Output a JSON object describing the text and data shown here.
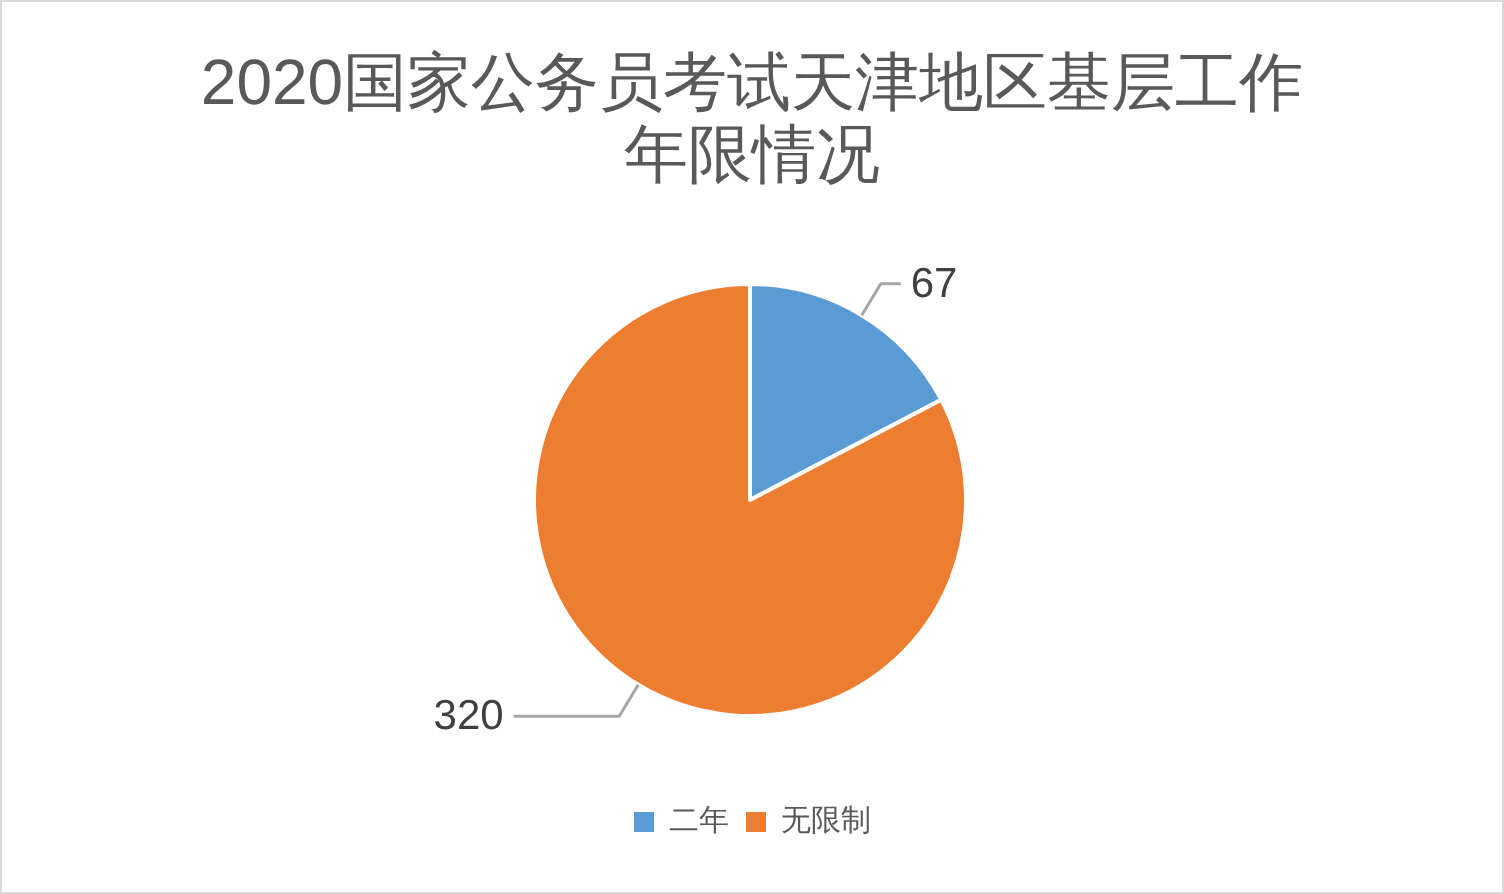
{
  "chart_data": {
    "type": "pie",
    "title": "2020国家公务员考试天津地区基层工作年限情况",
    "categories": [
      "二年",
      "无限制"
    ],
    "values": [
      67,
      320
    ],
    "colors": [
      "#5b9bd5",
      "#ed7d31"
    ],
    "data_labels": true,
    "legend": "bottom"
  }
}
